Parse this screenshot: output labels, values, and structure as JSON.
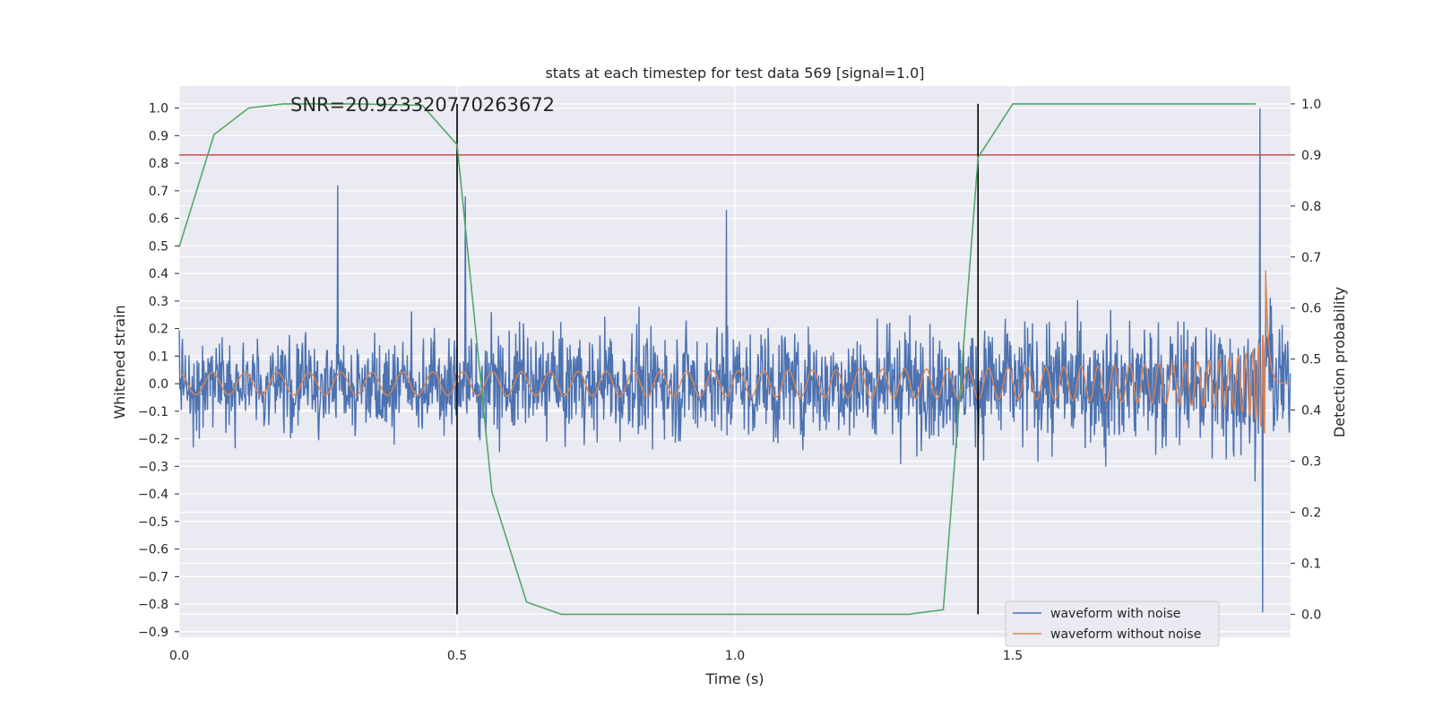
{
  "chart_data": {
    "type": "line",
    "title": "stats at each timestep for test data 569 [signal=1.0]",
    "annotation": "SNR=20.923320770263672",
    "xlabel": "Time (s)",
    "ylabel": "Whitened strain",
    "y2label": "Detection probability",
    "xlim": [
      0.0,
      2.0
    ],
    "ylim": [
      -0.92,
      1.08
    ],
    "y2lim": [
      -0.045,
      1.035
    ],
    "xticks": [
      0.0,
      0.5,
      1.0,
      1.5
    ],
    "xtick_labels": [
      "0.0",
      "0.5",
      "1.0",
      "1.5"
    ],
    "yticks": [
      1.0,
      0.9,
      0.8,
      0.7,
      0.6,
      0.5,
      0.4,
      0.3,
      0.2,
      0.1,
      0.0,
      -0.1,
      -0.2,
      -0.3,
      -0.4,
      -0.5,
      -0.6,
      -0.7,
      -0.8,
      -0.9
    ],
    "ytick_labels": [
      "1.0",
      "0.9",
      "0.8",
      "0.7",
      "0.6",
      "0.5",
      "0.4",
      "0.3",
      "0.2",
      "0.1",
      "0.0",
      "−0.1",
      "−0.2",
      "−0.3",
      "−0.4",
      "−0.5",
      "−0.6",
      "−0.7",
      "−0.8",
      "−0.9"
    ],
    "y2ticks": [
      1.0,
      0.9,
      0.8,
      0.7,
      0.6,
      0.5,
      0.4,
      0.3,
      0.2,
      0.1,
      0.0
    ],
    "y2tick_labels": [
      "1.0",
      "0.9",
      "0.8",
      "0.7",
      "0.6",
      "0.5",
      "0.4",
      "0.3",
      "0.2",
      "0.1",
      "0.0"
    ],
    "grid": true,
    "legend": {
      "placement": "bottom-right",
      "entries": [
        {
          "label": "waveform with noise",
          "color": "#4c72b0"
        },
        {
          "label": "waveform without noise",
          "color": "#dd8452"
        }
      ]
    },
    "noisy_waveform": {
      "name": "waveform with noise",
      "color": "#4c72b0",
      "x_start": 0.0,
      "x_end": 1.9995,
      "sample_count": 2048,
      "envelope_start": 0.2,
      "envelope_end": 0.3,
      "notable_peaks": [
        {
          "x": 0.285,
          "y": 0.72
        },
        {
          "x": 0.515,
          "y": 0.68
        },
        {
          "x": 0.985,
          "y": 0.63
        },
        {
          "x": 1.945,
          "y": 1.0
        },
        {
          "x": 1.95,
          "y": -0.83
        }
      ]
    },
    "clean_waveform": {
      "name": "waveform without noise",
      "color": "#dd8452",
      "x_start": 0.0,
      "x_end": 1.9995,
      "merger_time": 1.955,
      "amplitude_start": 0.04,
      "amplitude_peak": 0.45,
      "frequency_start": 16.7,
      "frequency_merger": 75
    },
    "detection_probability": {
      "color": "#55a868",
      "x": [
        0.0,
        0.0625,
        0.125,
        0.1875,
        0.25,
        0.3125,
        0.375,
        0.4375,
        0.5,
        0.5625,
        0.625,
        0.6875,
        0.75,
        0.8125,
        0.875,
        0.9375,
        1.0,
        1.0625,
        1.125,
        1.1875,
        1.25,
        1.3125,
        1.375,
        1.4375,
        1.5,
        1.5625,
        1.625,
        1.6875,
        1.75,
        1.8125,
        1.875,
        1.9375
      ],
      "y": [
        0.72,
        0.94,
        0.992,
        1.0,
        1.0,
        1.0,
        0.999,
        0.997,
        0.92,
        0.24,
        0.024,
        0.0,
        0.0,
        0.0,
        0.0,
        0.0,
        0.0,
        0.0,
        0.0,
        0.0,
        0.0,
        0.0,
        0.009,
        0.895,
        1.0,
        1.0,
        1.0,
        1.0,
        1.0,
        1.0,
        1.0,
        1.0
      ]
    },
    "threshold": {
      "y2": 0.9,
      "color": "#c44e52"
    },
    "vertical_markers": [
      {
        "x": 0.5,
        "y2_from": 0.0,
        "y2_to": 1.0,
        "color": "#000000"
      },
      {
        "x": 1.4375,
        "y2_from": 0.0,
        "y2_to": 1.0,
        "color": "#000000"
      }
    ],
    "colors": {
      "plot_background": "#eaeaf2",
      "grid": "#ffffff"
    }
  }
}
